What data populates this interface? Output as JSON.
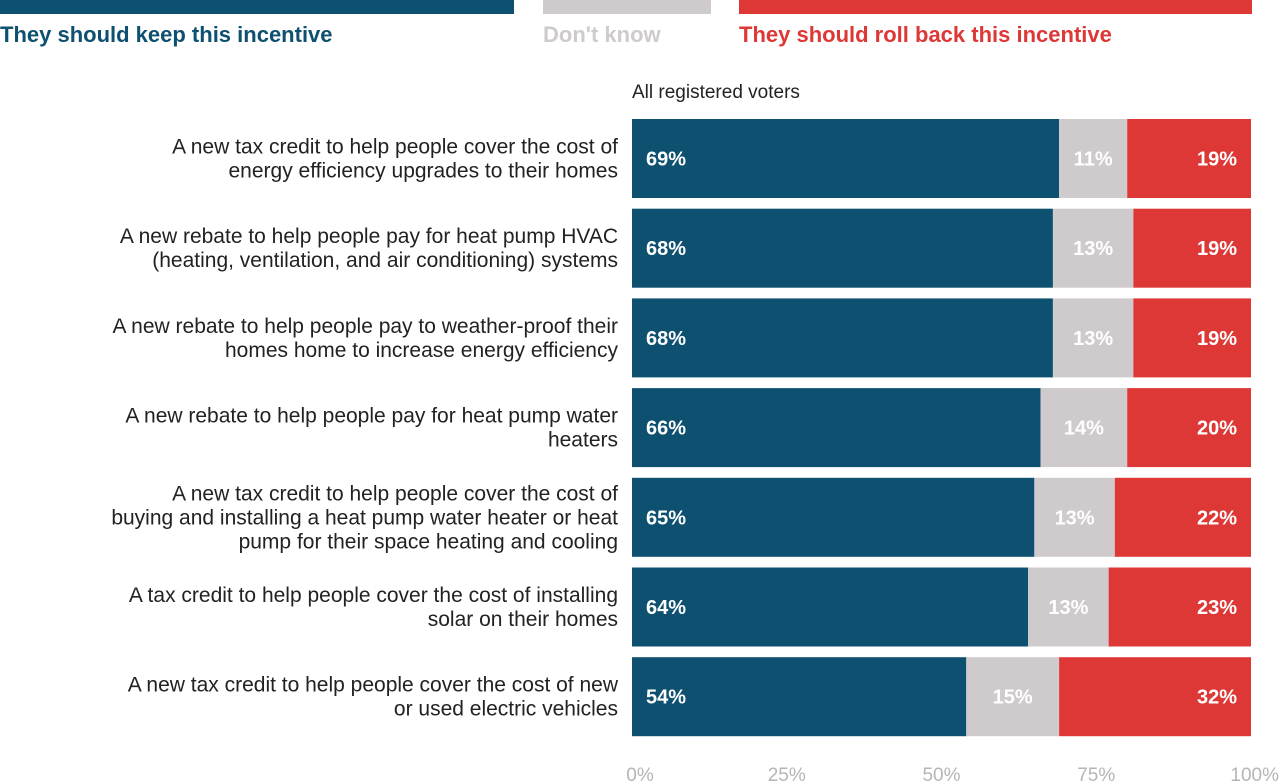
{
  "colors": {
    "keep": "#0e5070",
    "dont_know": "#cfcbcd",
    "roll_back": "#dd3836",
    "keep_text": "#ffffff",
    "dont_know_text": "#ffffff",
    "roll_back_text": "#ffffff",
    "category_text": "#222222",
    "tick_text": "#b5b5b5"
  },
  "chart_data": {
    "type": "bar",
    "orientation": "horizontal",
    "stacked": true,
    "subtitle": "All registered voters",
    "legend_position": "top",
    "categories": [
      [
        "A new tax credit to help people cover the cost of",
        "energy efficiency upgrades to their homes"
      ],
      [
        "A new rebate to help people pay for heat pump HVAC",
        "(heating, ventilation, and air conditioning) systems"
      ],
      [
        "A new rebate to help people pay to weather-proof their",
        "homes home to increase energy efficiency"
      ],
      [
        "A new rebate to help people pay for heat pump water",
        "heaters"
      ],
      [
        "A new tax credit to help people cover the cost of",
        "buying and installing a heat pump water heater or heat",
        "pump for their space heating and cooling"
      ],
      [
        "A tax credit to help people cover the cost of installing",
        "solar on their homes"
      ],
      [
        "A new tax credit to help people cover the cost of new",
        "or used electric vehicles"
      ]
    ],
    "series": [
      {
        "name": "They should keep this incentive",
        "color": "#0e5070",
        "values": [
          69,
          68,
          68,
          66,
          65,
          64,
          54
        ],
        "labels": [
          "69%",
          "68%",
          "68%",
          "66%",
          "65%",
          "64%",
          "54%"
        ]
      },
      {
        "name": "Don't know",
        "color": "#cfcbcd",
        "values": [
          11,
          13,
          13,
          14,
          13,
          13,
          15
        ],
        "labels": [
          "11%",
          "13%",
          "13%",
          "14%",
          "13%",
          "13%",
          "15%"
        ]
      },
      {
        "name": "They should roll back this incentive",
        "color": "#dd3836",
        "values": [
          19,
          19,
          19,
          20,
          22,
          23,
          32
        ],
        "labels": [
          "19%",
          "19%",
          "19%",
          "20%",
          "22%",
          "23%",
          "32%"
        ]
      }
    ],
    "xlim": [
      0,
      100
    ],
    "xticks": [
      0,
      25,
      50,
      75,
      100
    ],
    "xtick_labels": [
      "0%",
      "25%",
      "50%",
      "75%",
      "100%"
    ],
    "grid": false
  }
}
